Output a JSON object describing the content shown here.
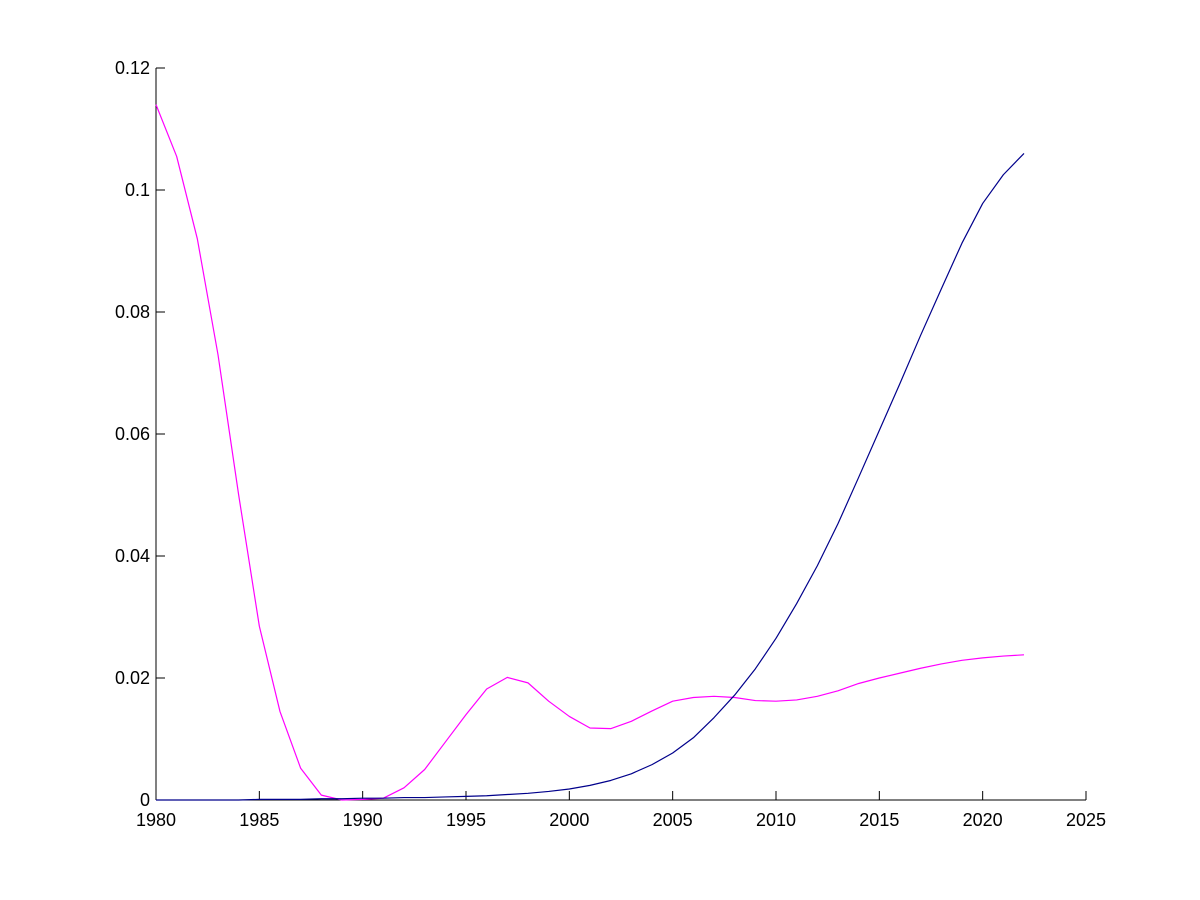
{
  "chart_data": {
    "type": "line",
    "title": "",
    "xlabel": "",
    "ylabel": "",
    "xlim": [
      1980,
      2025
    ],
    "ylim": [
      0,
      0.12
    ],
    "grid": false,
    "legend": "none",
    "x_ticks": [
      "1980",
      "1985",
      "1990",
      "1995",
      "2000",
      "2005",
      "2010",
      "2015",
      "2020",
      "2025"
    ],
    "y_ticks": [
      "0",
      "0.02",
      "0.04",
      "0.06",
      "0.08",
      "0.1",
      "0.12"
    ],
    "x_tick_values": [
      1980,
      1985,
      1990,
      1995,
      2000,
      2005,
      2010,
      2015,
      2020,
      2025
    ],
    "y_tick_values": [
      0,
      0.02,
      0.04,
      0.06,
      0.08,
      0.1,
      0.12
    ],
    "x": [
      1980,
      1981,
      1982,
      1983,
      1984,
      1985,
      1986,
      1987,
      1988,
      1989,
      1990,
      1991,
      1992,
      1993,
      1994,
      1995,
      1996,
      1997,
      1998,
      1999,
      2000,
      2001,
      2002,
      2003,
      2004,
      2005,
      2006,
      2007,
      2008,
      2009,
      2010,
      2011,
      2012,
      2013,
      2014,
      2015,
      2016,
      2017,
      2018,
      2019,
      2020,
      2021,
      2022
    ],
    "series": [
      {
        "color": "#ff00ff",
        "values": [
          0.114,
          0.1055,
          0.092,
          0.073,
          0.05,
          0.0285,
          0.0145,
          0.0052,
          0.0008,
          0.0,
          0.0001,
          0.0003,
          0.002,
          0.005,
          0.0095,
          0.014,
          0.0182,
          0.0201,
          0.0192,
          0.0162,
          0.0137,
          0.0118,
          0.0117,
          0.0129,
          0.0146,
          0.0162,
          0.0168,
          0.017,
          0.0168,
          0.0163,
          0.0162,
          0.0164,
          0.017,
          0.0179,
          0.0191,
          0.02,
          0.0208,
          0.0216,
          0.0223,
          0.0229,
          0.0233,
          0.0236,
          0.0238
        ]
      },
      {
        "color": "#00008b",
        "values": [
          0.0,
          0.0,
          0.0,
          0.0,
          0.0,
          0.0001,
          0.0001,
          0.0001,
          0.0002,
          0.0002,
          0.0003,
          0.0003,
          0.0004,
          0.0004,
          0.0005,
          0.0006,
          0.0007,
          0.0009,
          0.0011,
          0.0014,
          0.0018,
          0.0024,
          0.0032,
          0.0043,
          0.0058,
          0.0077,
          0.0102,
          0.0135,
          0.0172,
          0.0215,
          0.0265,
          0.0322,
          0.0384,
          0.0453,
          0.0529,
          0.0606,
          0.0683,
          0.0762,
          0.0838,
          0.0913,
          0.0978,
          0.1025,
          0.106
        ]
      }
    ]
  }
}
